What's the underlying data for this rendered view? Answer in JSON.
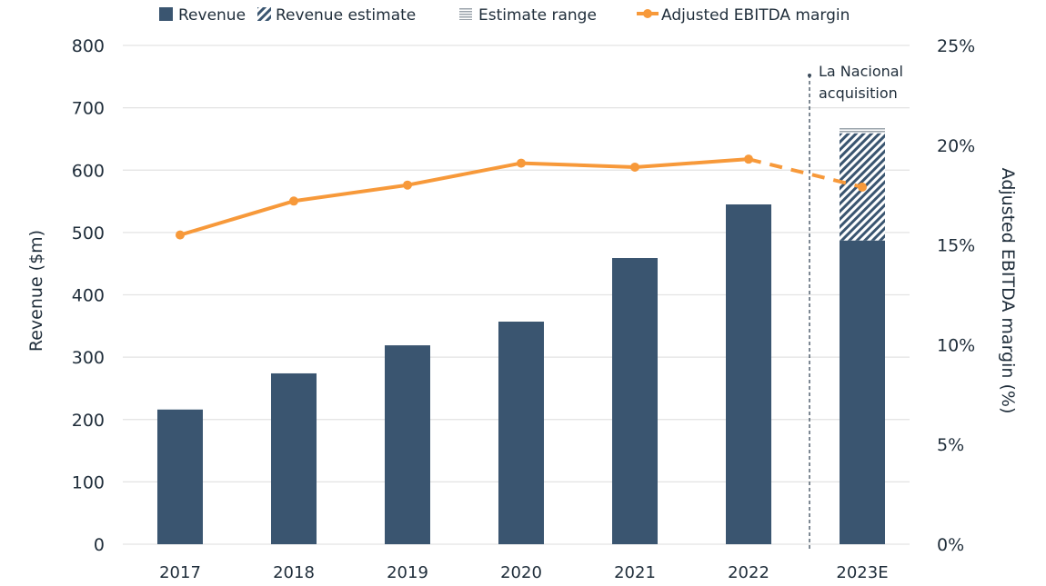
{
  "chart_data": {
    "type": "bar",
    "categories": [
      "2017",
      "2018",
      "2019",
      "2020",
      "2021",
      "2022",
      "2023E"
    ],
    "series": [
      {
        "name": "Revenue",
        "type": "bar",
        "axis": "left",
        "values": [
          216,
          274,
          319,
          357,
          459,
          545,
          487
        ]
      },
      {
        "name": "Revenue estimate",
        "type": "bar-hatched",
        "axis": "left",
        "values": [
          null,
          null,
          null,
          null,
          null,
          null,
          659
        ]
      },
      {
        "name": "Estimate range",
        "type": "bar-striped",
        "axis": "left",
        "values": [
          null,
          null,
          null,
          null,
          null,
          null,
          668
        ]
      },
      {
        "name": "Adjusted EBITDA margin",
        "type": "line",
        "axis": "right",
        "values": [
          15.5,
          17.2,
          18.0,
          19.1,
          18.9,
          19.3,
          17.9
        ],
        "dashed_from_index": 5
      }
    ],
    "ylabel": "Revenue ($m)",
    "y2label": "Adjusted EBITDA margin (%)",
    "ylim": [
      0,
      800
    ],
    "y2lim": [
      0,
      25
    ],
    "yticks": [
      "0",
      "100",
      "200",
      "300",
      "400",
      "500",
      "600",
      "700",
      "800"
    ],
    "y2ticks": [
      "0%",
      "5%",
      "10%",
      "15%",
      "20%",
      "25%"
    ],
    "grid": true,
    "legend_position": "top",
    "annotation": {
      "text_line1": "La Nacional",
      "text_line2": "acquisition",
      "between": [
        "2022",
        "2023E"
      ]
    },
    "colors": {
      "bar": "#3a5570",
      "line": "#f7993a",
      "grid": "#e3e3e3",
      "text": "#1f2d3a"
    }
  }
}
